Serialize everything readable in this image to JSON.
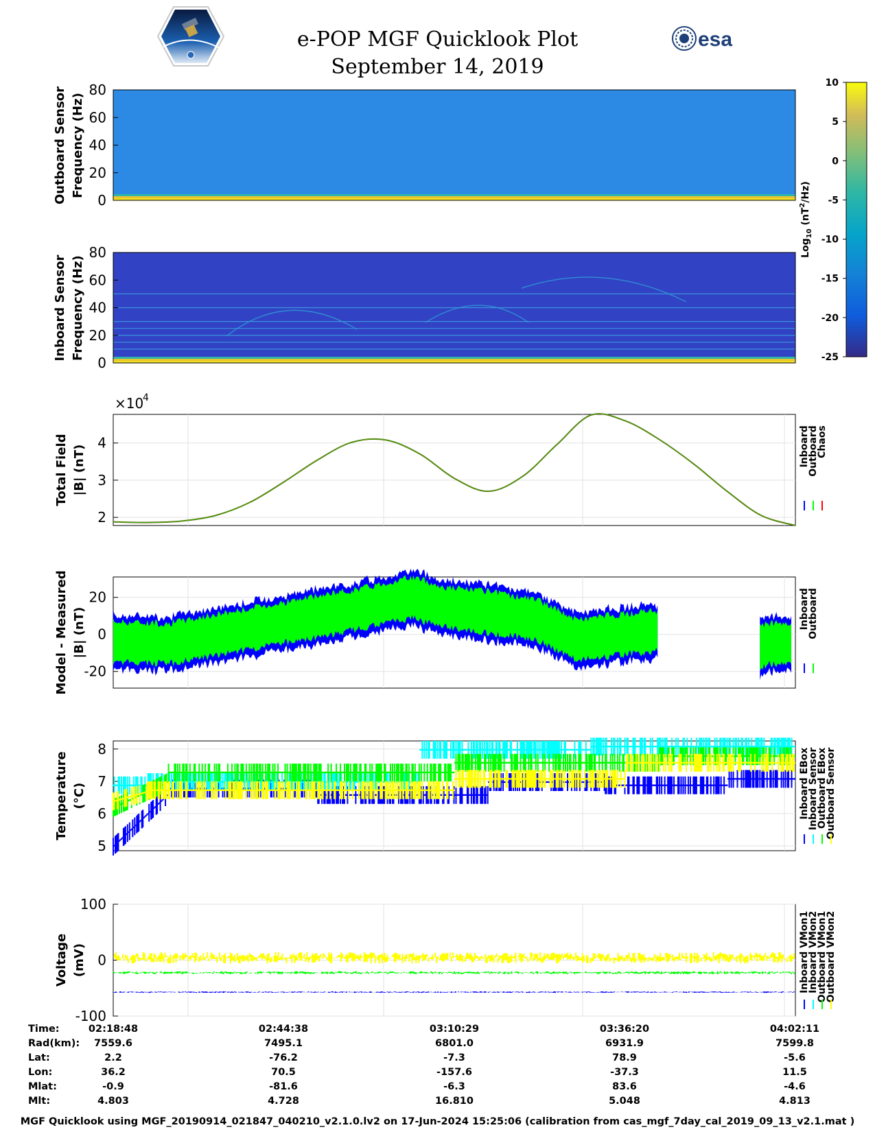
{
  "header": {
    "title_line1": "e-POP MGF Quicklook Plot",
    "title_line2": "September 14, 2019",
    "logo_text": "CASSIOPE",
    "esa_text": "esa"
  },
  "footer": {
    "text": "MGF Quicklook using MGF_20190914_021847_040210_v2.1.0.lv2 on 17-Jun-2024 15:25:06 (calibration from cas_mgf_7day_cal_2019_09_13_v2.1.mat )"
  },
  "colors": {
    "inboard": "#0000ff",
    "outboard": "#00ff00",
    "chaos": "#ff0000",
    "inboard_ebox": "#0000ff",
    "inboard_sensor": "#00ffff",
    "outboard_ebox": "#00ff00",
    "outboard_sensor": "#ffff00",
    "spec_outboard_bg": "#2e8ee6",
    "spec_inboard_bg": "#3340c8"
  },
  "colorbar": {
    "label": "Log10 (nT2/Hz)",
    "ticks": [
      "10",
      "5",
      "0",
      "-5",
      "-10",
      "-15",
      "-20",
      "-25"
    ],
    "range": [
      -25,
      10
    ]
  },
  "chart_data": [
    {
      "type": "heatmap",
      "ylabel_line1": "Outboard Sensor",
      "ylabel_line2": "Frequency (Hz)",
      "ylim": [
        0,
        80
      ],
      "yticks": [
        "80",
        "60",
        "40",
        "20",
        "0"
      ]
    },
    {
      "type": "heatmap",
      "ylabel_line1": "Inboard Sensor",
      "ylabel_line2": "Frequency (Hz)",
      "ylim": [
        0,
        80
      ],
      "yticks": [
        "80",
        "60",
        "40",
        "20",
        "0"
      ],
      "lines_hz": [
        50,
        40,
        30,
        25,
        20,
        15,
        10
      ]
    },
    {
      "type": "line",
      "ylabel_line1": "Total Field",
      "ylabel_line2": "|B| (nT)",
      "exponent_label": "×10",
      "exponent_power": "4",
      "yticks": [
        "4",
        "3",
        "2"
      ],
      "ylim": [
        1.78,
        4.77
      ],
      "x": [
        0,
        0.05,
        0.1,
        0.15,
        0.2,
        0.25,
        0.3,
        0.35,
        0.4,
        0.45,
        0.5,
        0.55,
        0.6,
        0.65,
        0.7,
        0.75,
        0.8,
        0.85,
        0.9,
        0.95,
        1.0
      ],
      "y": [
        1.88,
        1.86,
        1.9,
        2.05,
        2.4,
        2.95,
        3.55,
        4.02,
        4.08,
        3.7,
        3.05,
        2.7,
        3.1,
        3.95,
        4.75,
        4.6,
        4.1,
        3.45,
        2.7,
        2.05,
        1.78
      ],
      "legend": [
        "Inboard",
        "Outboard",
        "Chaos"
      ]
    },
    {
      "type": "area",
      "ylabel_line1": "Model - Measured",
      "ylabel_line2": "|B| (nT)",
      "yticks": [
        "20",
        "0",
        "-20"
      ],
      "ylim": [
        -29,
        31
      ],
      "legend": [
        "Inboard",
        "Outboard"
      ]
    },
    {
      "type": "line",
      "ylabel_line1": "Temperature",
      "ylabel_line2": "(°C)",
      "yticks": [
        "8",
        "7",
        "6",
        "5"
      ],
      "ylim": [
        4.85,
        8.25
      ],
      "legend": [
        "Inboard EBox",
        "Inboard Sensor",
        "Outboard EBox",
        "Outboard Sensor"
      ]
    },
    {
      "type": "line",
      "ylabel_line1": "Voltage",
      "ylabel_line2": "(mV)",
      "yticks": [
        "100",
        "0",
        "-100"
      ],
      "ylim": [
        -100,
        100
      ],
      "legend": [
        "Inboard VMon1",
        "Inboard VMon2",
        "Outboard VMon1",
        "Outboard VMon2"
      ]
    }
  ],
  "orbit_table": {
    "row_labels": [
      "Time:",
      "Rad(km):",
      "Lat:",
      "Lon:",
      "Mlat:",
      "Mlt:"
    ],
    "columns": [
      [
        "02:18:48",
        "7559.6",
        "2.2",
        "36.2",
        "-0.9",
        "4.803"
      ],
      [
        "02:44:38",
        "7495.1",
        "-76.2",
        "70.5",
        "-81.6",
        "4.728"
      ],
      [
        "03:10:29",
        "6801.0",
        "-7.3",
        "-157.6",
        "-6.3",
        "16.810"
      ],
      [
        "03:36:20",
        "6931.9",
        "78.9",
        "-37.3",
        "83.6",
        "5.048"
      ],
      [
        "04:02:11",
        "7599.8",
        "-5.6",
        "11.5",
        "-4.6",
        "4.813"
      ]
    ]
  }
}
